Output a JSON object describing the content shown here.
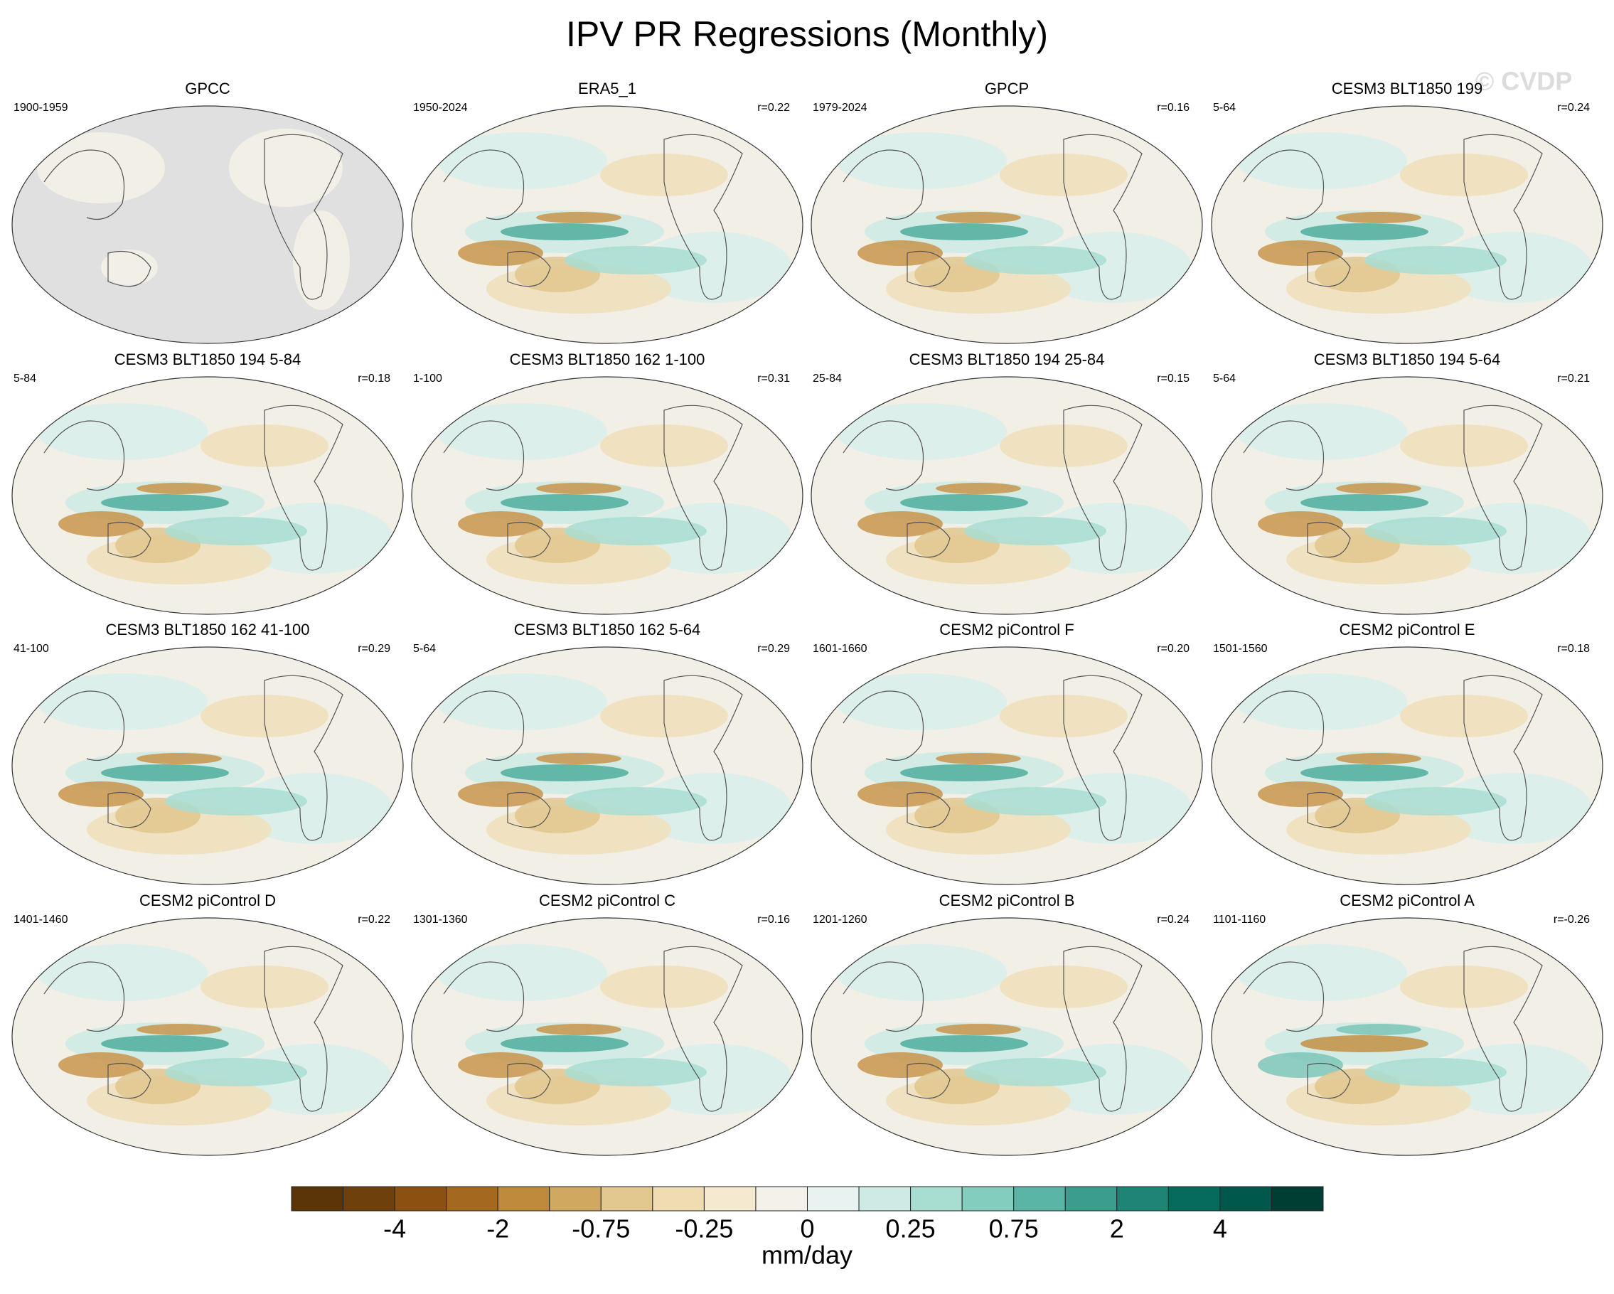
{
  "header": {
    "title": "IPV PR Regressions (Monthly)",
    "watermark": "© CVDP"
  },
  "panels": [
    {
      "title": "GPCC",
      "period": "1900-1959",
      "r": null,
      "ocean": "#e0e0e0"
    },
    {
      "title": "ERA5_1",
      "period": "1950-2024",
      "r": "r=0.22",
      "ocean": "#f2efe6"
    },
    {
      "title": "GPCP",
      "period": "1979-2024",
      "r": "r=0.16",
      "ocean": "#f2efe6"
    },
    {
      "title": "CESM3 BLT1850 199",
      "period": "5-64",
      "r": "r=0.24",
      "ocean": "#f2efe6"
    },
    {
      "title": "CESM3 BLT1850 194 5-84",
      "period": "5-84",
      "r": "r=0.18",
      "ocean": "#f2efe6"
    },
    {
      "title": "CESM3 BLT1850 162 1-100",
      "period": "1-100",
      "r": "r=0.31",
      "ocean": "#f2efe6"
    },
    {
      "title": "CESM3 BLT1850 194 25-84",
      "period": "25-84",
      "r": "r=0.15",
      "ocean": "#f2efe6"
    },
    {
      "title": "CESM3 BLT1850 194 5-64",
      "period": "5-64",
      "r": "r=0.21",
      "ocean": "#f2efe6"
    },
    {
      "title": "CESM3 BLT1850 162 41-100",
      "period": "41-100",
      "r": "r=0.29",
      "ocean": "#f2efe6"
    },
    {
      "title": "CESM3 BLT1850 162 5-64",
      "period": "5-64",
      "r": "r=0.29",
      "ocean": "#f2efe6"
    },
    {
      "title": "CESM2 piControl F",
      "period": "1601-1660",
      "r": "r=0.20",
      "ocean": "#f2efe6"
    },
    {
      "title": "CESM2 piControl E",
      "period": "1501-1560",
      "r": "r=0.18",
      "ocean": "#f2efe6"
    },
    {
      "title": "CESM2 piControl D",
      "period": "1401-1460",
      "r": "r=0.22",
      "ocean": "#f2efe6"
    },
    {
      "title": "CESM2 piControl C",
      "period": "1301-1360",
      "r": "r=0.16",
      "ocean": "#f2efe6"
    },
    {
      "title": "CESM2 piControl B",
      "period": "1201-1260",
      "r": "r=0.24",
      "ocean": "#f2efe6"
    },
    {
      "title": "CESM2 piControl A",
      "period": "1101-1160",
      "r": "r=-0.26",
      "ocean": "#f2efe6"
    }
  ],
  "colorbar": {
    "colors": [
      "#5b3407",
      "#6e400b",
      "#8c5111",
      "#a4691f",
      "#bf8a3c",
      "#d0a860",
      "#e2c78e",
      "#efdcb0",
      "#f5ead0",
      "#f3f1ea",
      "#e8f2f0",
      "#cdeae4",
      "#a8ddd2",
      "#83cdbf",
      "#5bb5a6",
      "#3a9d8e",
      "#1d8476",
      "#066b5d",
      "#00574b",
      "#003d33"
    ],
    "labels": [
      "-4",
      "-2",
      "-0.75",
      "-0.25",
      "0",
      "0.25",
      "0.75",
      "2",
      "4"
    ],
    "unit": "mm/day"
  }
}
